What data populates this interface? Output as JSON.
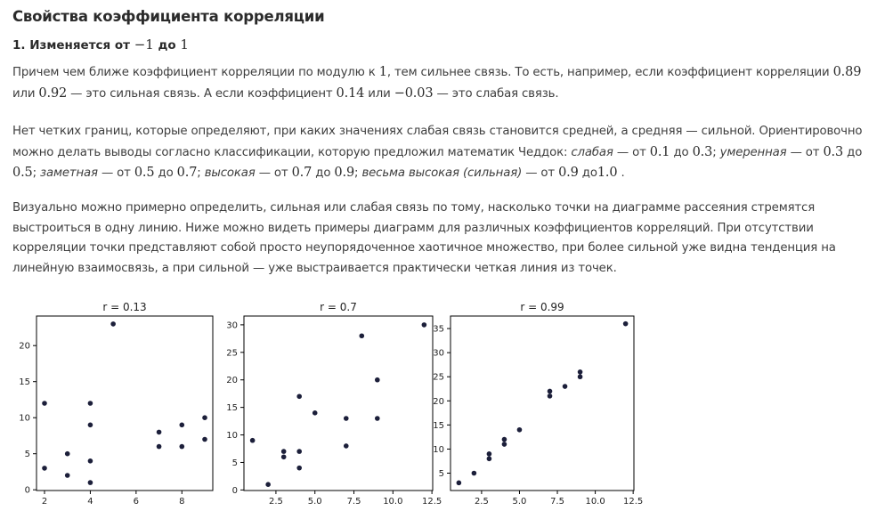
{
  "heading": "Свойства коэффициента корреляции",
  "subheading": {
    "prefix": "1. Изменяется от ",
    "from": "−1",
    "middle": " до ",
    "to": "1"
  },
  "paragraph1": {
    "t1": "Причем чем ближе коэффициент корреляции по модулю к ",
    "m1": "1",
    "t2": ", тем сильнее связь. То есть, например, если коэффициент корреляции ",
    "m2": "0.89",
    "t3": " или ",
    "m3": "0.92",
    "t4": " — это сильная связь. А если коэффициент ",
    "m4": "0.14",
    "t5": " или ",
    "m5": "−0.03",
    "t6": " — это слабая связь."
  },
  "paragraph2": {
    "t1": "Нет четких границ, которые определяют, при каких значениях слабая связь становится средней, а средняя — сильной. Ориентировочно можно делать выводы согласно классификации, которую предложил математик Чеддок: ",
    "c1": "слабая",
    "t2": " — от ",
    "a1": "0.1",
    "t3": " до ",
    "b1": "0.3",
    "t4": "; ",
    "c2": "умеренная",
    "t5": " — от ",
    "a2": "0.3",
    "t6": " до ",
    "b2": "0.5",
    "t7": "; ",
    "c3": "заметная",
    "t8": " — от ",
    "a3": "0.5",
    "t9": " до ",
    "b3": "0.7",
    "t10": "; ",
    "c4": "высокая",
    "t11": " — от ",
    "a4": "0.7",
    "t12": " до ",
    "b4": "0.9",
    "t13": "; ",
    "c5": "весьма высокая (сильная)",
    "t14": " — от ",
    "a5": "0.9",
    "t15": " до",
    "b5": "1.0",
    "t16": " ."
  },
  "paragraph3": "Визуально можно примерно определить, сильная или слабая связь по тому, насколько точки на диаграмме рассеяния стремятся выстроиться в одну линию. Ниже можно видеть примеры диаграмм для различных коэффициентов корреляций. При отсутствии корреляции точки представляют собой просто неупорядоченное хаотичное множество, при более сильной уже видна тенденция на линейную взаимосвязь, а при сильной — уже выстраивается практически четкая линия из точек.",
  "colors": {
    "point": "#1c1f3a",
    "axis": "#000000",
    "text": "#3e3e3e"
  },
  "chart_data": [
    {
      "type": "scatter",
      "title": "r  = 0.13",
      "xlim": [
        1.65,
        9.35
      ],
      "ylim": [
        -0.1,
        24.1
      ],
      "xticks": [
        "2",
        "4",
        "6",
        "8"
      ],
      "xtick_values": [
        2,
        4,
        6,
        8
      ],
      "yticks": [
        "0",
        "5",
        "10",
        "15",
        "20"
      ],
      "ytick_values": [
        0,
        5,
        10,
        15,
        20
      ],
      "points": [
        [
          2,
          12
        ],
        [
          2,
          3
        ],
        [
          3,
          5
        ],
        [
          3,
          2
        ],
        [
          4,
          12
        ],
        [
          4,
          9
        ],
        [
          4,
          4
        ],
        [
          4,
          1
        ],
        [
          5,
          23
        ],
        [
          7,
          8
        ],
        [
          7,
          6
        ],
        [
          8,
          9
        ],
        [
          8,
          6
        ],
        [
          9,
          10
        ],
        [
          9,
          7
        ]
      ]
    },
    {
      "type": "scatter",
      "title": "r = 0.7",
      "xlim": [
        0.45,
        12.55
      ],
      "ylim": [
        -0.1,
        31.6
      ],
      "xticks": [
        "2.5",
        "5.0",
        "7.5",
        "10.0",
        "12.5"
      ],
      "xtick_values": [
        2.5,
        5,
        7.5,
        10,
        12.5
      ],
      "yticks": [
        "0",
        "5",
        "10",
        "15",
        "20",
        "25",
        "30"
      ],
      "ytick_values": [
        0,
        5,
        10,
        15,
        20,
        25,
        30
      ],
      "points": [
        [
          1,
          9
        ],
        [
          2,
          1
        ],
        [
          3,
          7
        ],
        [
          3,
          6
        ],
        [
          4,
          17
        ],
        [
          4,
          7
        ],
        [
          4,
          4
        ],
        [
          5,
          14
        ],
        [
          7,
          13
        ],
        [
          7,
          8
        ],
        [
          8,
          28
        ],
        [
          9,
          20
        ],
        [
          9,
          13
        ],
        [
          12,
          30
        ]
      ]
    },
    {
      "type": "scatter",
      "title": "r = 0.99",
      "xlim": [
        0.45,
        12.55
      ],
      "ylim": [
        1.4,
        37.6
      ],
      "xticks": [
        "2.5",
        "5.0",
        "7.5",
        "10.0",
        "12.5"
      ],
      "xtick_values": [
        2.5,
        5,
        7.5,
        10,
        12.5
      ],
      "yticks": [
        "5",
        "10",
        "15",
        "20",
        "25",
        "30",
        "35"
      ],
      "ytick_values": [
        5,
        10,
        15,
        20,
        25,
        30,
        35
      ],
      "points": [
        [
          1,
          3
        ],
        [
          2,
          5
        ],
        [
          3,
          9
        ],
        [
          3,
          8
        ],
        [
          4,
          12
        ],
        [
          4,
          11
        ],
        [
          5,
          14
        ],
        [
          7,
          22
        ],
        [
          7,
          21
        ],
        [
          8,
          23
        ],
        [
          9,
          26
        ],
        [
          9,
          25
        ],
        [
          12,
          36
        ]
      ]
    }
  ]
}
